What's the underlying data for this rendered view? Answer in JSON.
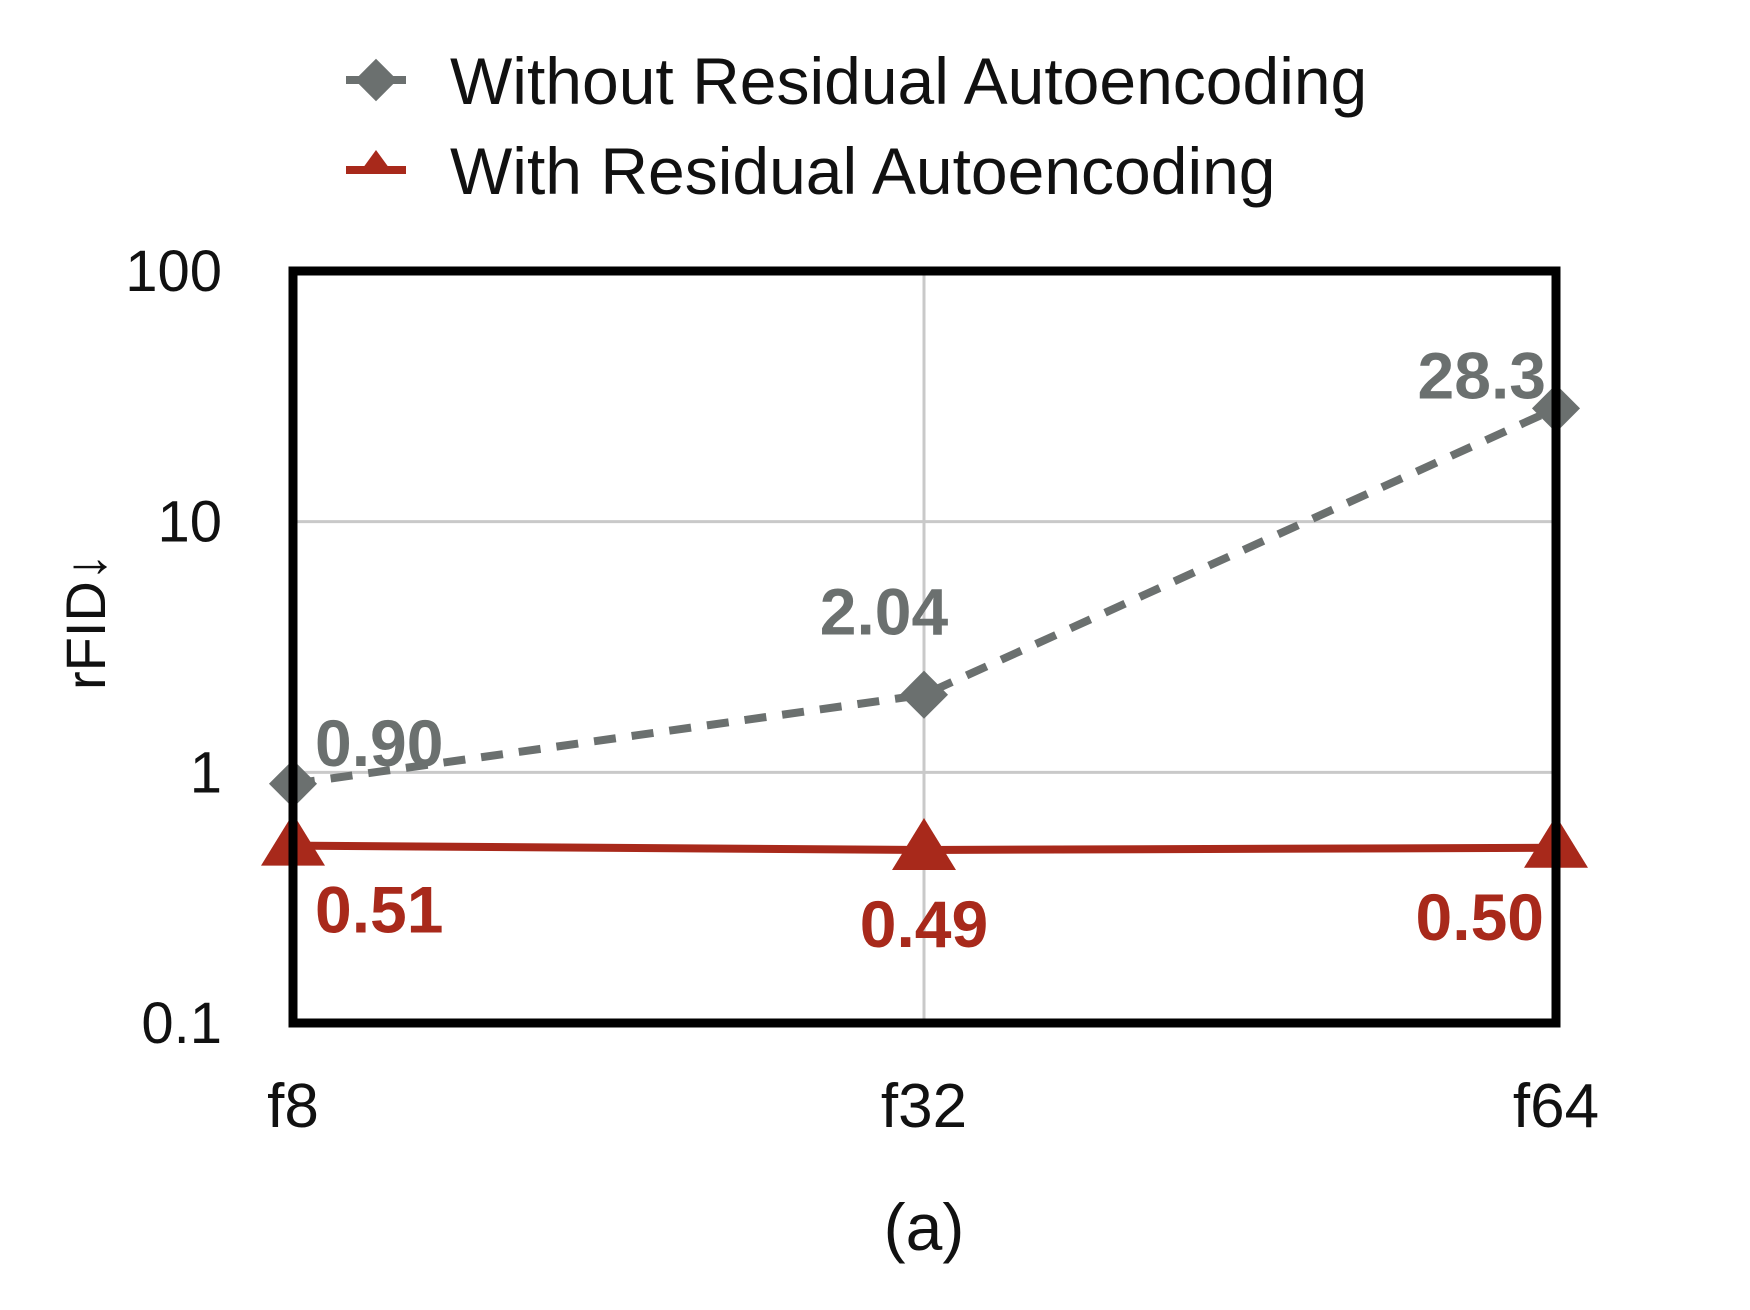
{
  "chart_data": {
    "type": "line",
    "categories": [
      "f8",
      "f32",
      "f64"
    ],
    "ylabel": "rFID↓",
    "y_scale": "log",
    "ylim": [
      0.1,
      100
    ],
    "y_ticks": [
      "0.1",
      "1",
      "10",
      "100"
    ],
    "grid": true,
    "legend_position": "top",
    "caption": "(a)",
    "series": [
      {
        "name": "Without Residual Autoencoding",
        "values": [
          0.9,
          2.04,
          28.3
        ],
        "labels": [
          "0.90",
          "2.04",
          "28.3"
        ],
        "color": "#6b706f",
        "line_style": "dashed",
        "marker": "diamond"
      },
      {
        "name": "With Residual Autoencoding",
        "values": [
          0.51,
          0.49,
          0.5
        ],
        "labels": [
          "0.51",
          "0.49",
          "0.50"
        ],
        "color": "#a8291b",
        "line_style": "solid",
        "marker": "triangle"
      }
    ]
  }
}
